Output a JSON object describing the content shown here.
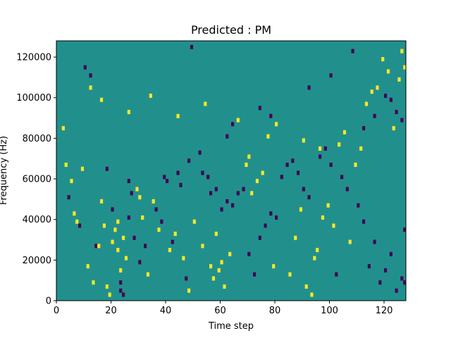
{
  "chart_data": {
    "type": "heatmap",
    "title": "Predicted : PM",
    "xlabel": "Time step",
    "ylabel": "Frequency (Hz)",
    "xlim": [
      0,
      128
    ],
    "ylim": [
      0,
      128000
    ],
    "x_ticks": [
      0,
      20,
      40,
      60,
      80,
      100,
      120
    ],
    "y_ticks": [
      0,
      20000,
      40000,
      60000,
      80000,
      100000,
      120000
    ],
    "x_tick_labels": [
      "0",
      "20",
      "40",
      "60",
      "80",
      "100",
      "120"
    ],
    "y_tick_labels": [
      "0",
      "20000",
      "40000",
      "60000",
      "80000",
      "100000",
      "120000"
    ],
    "n_time_steps": 128,
    "n_frequency_bins": 64,
    "bin_height_hz": 2000,
    "colormap": "viridis",
    "value_range": [
      -1,
      1
    ],
    "colors": {
      "low": "#440154",
      "mid": "#21908d",
      "high": "#fde725"
    },
    "background_value": 0,
    "low_cells": [
      [
        4,
        50000
      ],
      [
        10,
        114000
      ],
      [
        12,
        110000
      ],
      [
        23,
        4000
      ],
      [
        23,
        8000
      ],
      [
        24,
        2000
      ],
      [
        26,
        40000
      ],
      [
        26,
        58000
      ],
      [
        27,
        52000
      ],
      [
        30,
        18000
      ],
      [
        39,
        60000
      ],
      [
        40,
        58000
      ],
      [
        44,
        62000
      ],
      [
        45,
        56000
      ],
      [
        47,
        10000
      ],
      [
        49,
        124000
      ],
      [
        53,
        62000
      ],
      [
        55,
        60000
      ],
      [
        56,
        52000
      ],
      [
        58,
        54000
      ],
      [
        60,
        44000
      ],
      [
        62,
        48000
      ],
      [
        64,
        46000
      ],
      [
        66,
        52000
      ],
      [
        68,
        54000
      ],
      [
        70,
        22000
      ],
      [
        72,
        12000
      ],
      [
        74,
        30000
      ],
      [
        76,
        36000
      ],
      [
        78,
        42000
      ],
      [
        80,
        40000
      ],
      [
        82,
        60000
      ],
      [
        84,
        66000
      ],
      [
        86,
        68000
      ],
      [
        88,
        62000
      ],
      [
        90,
        54000
      ],
      [
        92,
        50000
      ],
      [
        96,
        70000
      ],
      [
        98,
        74000
      ],
      [
        100,
        66000
      ],
      [
        102,
        12000
      ],
      [
        104,
        60000
      ],
      [
        106,
        54000
      ],
      [
        110,
        46000
      ],
      [
        112,
        38000
      ],
      [
        114,
        16000
      ],
      [
        116,
        28000
      ],
      [
        118,
        8000
      ],
      [
        120,
        14000
      ],
      [
        122,
        22000
      ],
      [
        124,
        4000
      ],
      [
        126,
        10000
      ],
      [
        127,
        34000
      ],
      [
        127,
        8000
      ],
      [
        8,
        36000
      ],
      [
        14,
        26000
      ],
      [
        18,
        64000
      ],
      [
        20,
        44000
      ],
      [
        28,
        30000
      ],
      [
        32,
        26000
      ],
      [
        36,
        44000
      ],
      [
        38,
        38000
      ],
      [
        42,
        28000
      ],
      [
        48,
        68000
      ],
      [
        52,
        72000
      ],
      [
        62,
        80000
      ],
      [
        64,
        86000
      ],
      [
        74,
        94000
      ],
      [
        78,
        90000
      ],
      [
        92,
        104000
      ],
      [
        100,
        110000
      ],
      [
        108,
        122000
      ],
      [
        112,
        84000
      ],
      [
        116,
        90000
      ],
      [
        120,
        100000
      ],
      [
        122,
        98000
      ],
      [
        124,
        92000
      ],
      [
        126,
        88000
      ]
    ],
    "high_cells": [
      [
        2,
        84000
      ],
      [
        3,
        66000
      ],
      [
        5,
        58000
      ],
      [
        6,
        42000
      ],
      [
        7,
        38000
      ],
      [
        9,
        64000
      ],
      [
        11,
        16000
      ],
      [
        13,
        8000
      ],
      [
        15,
        26000
      ],
      [
        16,
        48000
      ],
      [
        17,
        36000
      ],
      [
        18,
        6000
      ],
      [
        19,
        2000
      ],
      [
        20,
        28000
      ],
      [
        21,
        34000
      ],
      [
        22,
        38000
      ],
      [
        22,
        24000
      ],
      [
        23,
        14000
      ],
      [
        24,
        30000
      ],
      [
        25,
        20000
      ],
      [
        29,
        54000
      ],
      [
        30,
        50000
      ],
      [
        31,
        40000
      ],
      [
        33,
        12000
      ],
      [
        35,
        48000
      ],
      [
        37,
        34000
      ],
      [
        41,
        24000
      ],
      [
        43,
        32000
      ],
      [
        46,
        20000
      ],
      [
        48,
        4000
      ],
      [
        50,
        38000
      ],
      [
        53,
        26000
      ],
      [
        56,
        16000
      ],
      [
        57,
        10000
      ],
      [
        58,
        32000
      ],
      [
        59,
        14000
      ],
      [
        60,
        18000
      ],
      [
        61,
        6000
      ],
      [
        63,
        22000
      ],
      [
        69,
        66000
      ],
      [
        70,
        70000
      ],
      [
        71,
        52000
      ],
      [
        73,
        58000
      ],
      [
        75,
        62000
      ],
      [
        77,
        80000
      ],
      [
        79,
        16000
      ],
      [
        85,
        12000
      ],
      [
        87,
        30000
      ],
      [
        89,
        44000
      ],
      [
        91,
        6000
      ],
      [
        93,
        2000
      ],
      [
        94,
        20000
      ],
      [
        95,
        24000
      ],
      [
        97,
        40000
      ],
      [
        99,
        46000
      ],
      [
        101,
        36000
      ],
      [
        103,
        76000
      ],
      [
        105,
        82000
      ],
      [
        107,
        28000
      ],
      [
        109,
        66000
      ],
      [
        111,
        74000
      ],
      [
        113,
        96000
      ],
      [
        115,
        102000
      ],
      [
        117,
        104000
      ],
      [
        119,
        118000
      ],
      [
        121,
        112000
      ],
      [
        123,
        84000
      ],
      [
        125,
        108000
      ],
      [
        126,
        122000
      ],
      [
        127,
        114000
      ],
      [
        12,
        104000
      ],
      [
        16,
        98000
      ],
      [
        26,
        92000
      ],
      [
        34,
        100000
      ],
      [
        44,
        90000
      ],
      [
        54,
        96000
      ],
      [
        66,
        88000
      ],
      [
        80,
        86000
      ],
      [
        90,
        78000
      ],
      [
        96,
        74000
      ]
    ]
  }
}
